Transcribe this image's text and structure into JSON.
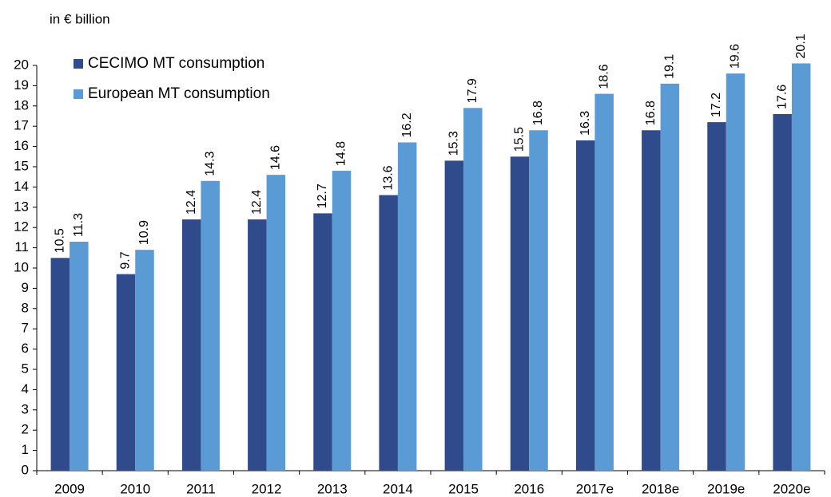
{
  "chart_data": {
    "type": "bar",
    "ylabel": "in € billion",
    "categories": [
      "2009",
      "2010",
      "2011",
      "2012",
      "2013",
      "2014",
      "2015",
      "2016",
      "2017e",
      "2018e",
      "2019e",
      "2020e"
    ],
    "series": [
      {
        "name": "CECIMO MT consumption",
        "color": "#2f4b8c",
        "values": [
          10.5,
          9.7,
          12.4,
          12.4,
          12.7,
          13.6,
          15.3,
          15.5,
          16.3,
          16.8,
          17.2,
          17.6
        ]
      },
      {
        "name": "European MT consumption",
        "color": "#5b9bd5",
        "values": [
          11.3,
          10.9,
          14.3,
          14.6,
          14.8,
          16.2,
          17.9,
          16.8,
          18.6,
          19.1,
          19.6,
          20.1
        ]
      }
    ],
    "ylim": [
      0,
      20
    ],
    "yticks": [
      0,
      1,
      2,
      3,
      4,
      5,
      6,
      7,
      8,
      9,
      10,
      11,
      12,
      13,
      14,
      15,
      16,
      17,
      18,
      19,
      20
    ],
    "grid": false,
    "legend": "upper-left"
  }
}
